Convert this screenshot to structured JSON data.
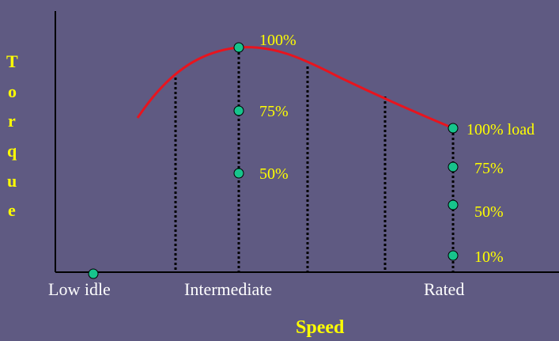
{
  "y_axis_letters": [
    "T",
    "o",
    "r",
    "q",
    "u",
    "e"
  ],
  "x_axis_title": "Speed",
  "speed_labels": {
    "low_idle": "Low idle",
    "intermediate": "Intermediate",
    "rated": "Rated"
  },
  "intermediate_points": {
    "p100": "100%",
    "p75": "75%",
    "p50": "50%"
  },
  "rated_points": {
    "p100": "100% load",
    "p75": "75%",
    "p50": "50%",
    "p10": "10%"
  },
  "colors": {
    "background": "#5f5a82",
    "curve": "#e8141e",
    "point": "#17c48c",
    "label": "#ffff00",
    "axis": "#000000"
  }
}
